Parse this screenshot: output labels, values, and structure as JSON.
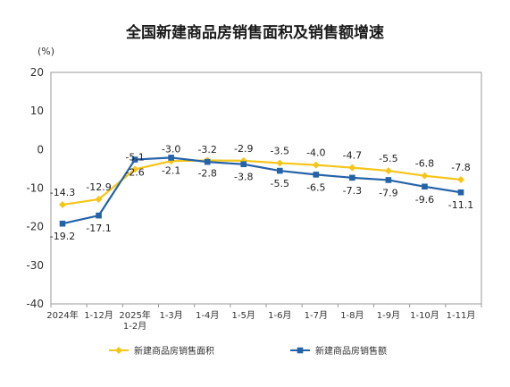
{
  "chart_data": {
    "type": "line",
    "title": "全国新建商品房销售面积及销售额增速",
    "ylabel": "(%)",
    "xlabel": "",
    "ylim": [
      -40,
      20
    ],
    "yticks": [
      20,
      10,
      0,
      -10,
      -20,
      -30,
      -40
    ],
    "categories": [
      "2024年",
      "1-12月",
      "2025年1-2月",
      "1-3月",
      "1-4月",
      "1-5月",
      "1-6月",
      "1-7月",
      "1-8月",
      "1-9月",
      "1-10月",
      "1-11月"
    ],
    "category_lines": [
      [
        "2024年"
      ],
      [
        "1-12月"
      ],
      [
        "2025年",
        "1-2月"
      ],
      [
        "1-3月"
      ],
      [
        "1-4月"
      ],
      [
        "1-5月"
      ],
      [
        "1-6月"
      ],
      [
        "1-7月"
      ],
      [
        "1-8月"
      ],
      [
        "1-9月"
      ],
      [
        "1-10月"
      ],
      [
        "1-11月"
      ]
    ],
    "series": [
      {
        "name": "新建商品房销售面积",
        "color": "#f5c518",
        "values": [
          -14.3,
          -12.9,
          -5.1,
          -3.0,
          -2.8,
          -2.9,
          -3.5,
          -4.0,
          -4.7,
          -5.5,
          -6.8,
          -7.8
        ],
        "labels": [
          "-14.3",
          "-12.9",
          "-5.1",
          "-3.0",
          "-2.8",
          "-2.9",
          "-3.5",
          "-4.0",
          "-4.7",
          "-5.5",
          "-6.8",
          "-7.8"
        ]
      },
      {
        "name": "新建商品房销售额",
        "color": "#2563a8",
        "values": [
          -19.2,
          -17.1,
          -2.6,
          -2.1,
          -3.2,
          -3.8,
          -5.5,
          -6.5,
          -7.3,
          -7.9,
          -9.6,
          -11.1
        ],
        "labels": [
          "-19.2",
          "-17.1",
          "-2.6",
          "-2.1",
          "-3.2",
          "-3.8",
          "-5.5",
          "-6.5",
          "-7.3",
          "-7.9",
          "-9.6",
          "-11.1"
        ]
      }
    ],
    "legend_position": "bottom",
    "grid": false
  }
}
